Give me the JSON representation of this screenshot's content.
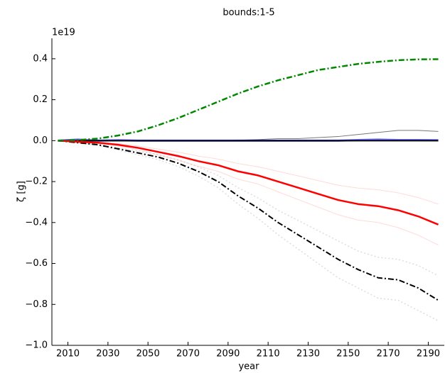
{
  "chart_data": {
    "type": "line",
    "title": "bounds:1-5",
    "x_label": "year",
    "y_label": "ζ [g]",
    "y_offset_label": "1e19",
    "x": [
      2005,
      2015,
      2025,
      2035,
      2045,
      2055,
      2065,
      2075,
      2085,
      2095,
      2105,
      2115,
      2125,
      2135,
      2145,
      2155,
      2165,
      2175,
      2185,
      2195
    ],
    "xlim": [
      2002,
      2198
    ],
    "xticks": [
      2010,
      2030,
      2050,
      2070,
      2090,
      2110,
      2130,
      2150,
      2170,
      2190
    ],
    "ylim": [
      -1.0,
      0.5
    ],
    "yticks": [
      {
        "value": -1.0,
        "label": "−1.0"
      },
      {
        "value": -0.8,
        "label": "−0.8"
      },
      {
        "value": -0.6,
        "label": "−0.6"
      },
      {
        "value": -0.4,
        "label": "−0.4"
      },
      {
        "value": -0.2,
        "label": "−0.2"
      },
      {
        "value": 0.0,
        "label": "0.0"
      },
      {
        "value": 0.2,
        "label": "0.2"
      },
      {
        "value": 0.4,
        "label": "0.4"
      }
    ],
    "series": [
      {
        "color": "#bbbbbb",
        "style": "dotted",
        "width": 1.5,
        "opacity": 0.5,
        "values": [
          0,
          -0.008,
          -0.017,
          -0.034,
          -0.051,
          -0.068,
          -0.094,
          -0.128,
          -0.17,
          -0.23,
          -0.28,
          -0.34,
          -0.39,
          -0.44,
          -0.49,
          -0.54,
          -0.57,
          -0.58,
          -0.61,
          -0.66
        ]
      },
      {
        "color": "#bbbbbb",
        "style": "dotted",
        "width": 1.5,
        "opacity": 0.5,
        "values": [
          0,
          -0.012,
          -0.023,
          -0.046,
          -0.069,
          -0.092,
          -0.126,
          -0.172,
          -0.23,
          -0.31,
          -0.38,
          -0.46,
          -0.53,
          -0.6,
          -0.67,
          -0.72,
          -0.77,
          -0.78,
          -0.83,
          -0.88
        ]
      },
      {
        "color": "#ff0000",
        "style": "solid",
        "width": 1,
        "opacity": 0.15,
        "values": [
          0,
          -0.004,
          -0.008,
          -0.015,
          -0.026,
          -0.041,
          -0.056,
          -0.075,
          -0.09,
          -0.112,
          -0.128,
          -0.15,
          -0.172,
          -0.195,
          -0.218,
          -0.232,
          -0.24,
          -0.255,
          -0.278,
          -0.31
        ]
      },
      {
        "color": "#ff0000",
        "style": "solid",
        "width": 1,
        "opacity": 0.15,
        "values": [
          0,
          -0.006,
          -0.012,
          -0.025,
          -0.044,
          -0.069,
          -0.094,
          -0.125,
          -0.15,
          -0.188,
          -0.212,
          -0.25,
          -0.288,
          -0.325,
          -0.362,
          -0.388,
          -0.4,
          -0.425,
          -0.462,
          -0.51
        ]
      },
      {
        "color": "#777777",
        "style": "solid",
        "width": 1,
        "opacity": 1,
        "values": [
          0,
          0,
          0,
          0,
          0,
          0,
          0,
          0,
          0,
          0.002,
          0.005,
          0.01,
          0.01,
          0.015,
          0.02,
          0.03,
          0.04,
          0.05,
          0.05,
          0.045
        ]
      },
      {
        "color": "#0000ff",
        "style": "solid",
        "width": 3,
        "opacity": 0.6,
        "values": [
          0,
          0.005,
          0,
          0.002,
          0,
          0,
          0,
          0,
          0,
          0,
          0,
          0,
          0,
          0,
          0,
          0.003,
          0.005,
          0.003,
          0.003,
          0.002
        ]
      },
      {
        "color": "#000000",
        "style": "solid",
        "width": 2,
        "opacity": 1,
        "values": [
          0,
          0,
          0,
          0,
          0,
          0,
          0,
          0,
          0,
          0,
          0,
          0,
          0,
          0,
          0,
          0,
          0,
          0,
          0,
          0
        ]
      },
      {
        "color": "#000000",
        "style": "dashdot",
        "width": 2,
        "opacity": 1,
        "values": [
          0,
          -0.01,
          -0.02,
          -0.04,
          -0.06,
          -0.08,
          -0.11,
          -0.15,
          -0.2,
          -0.27,
          -0.33,
          -0.4,
          -0.46,
          -0.52,
          -0.58,
          -0.63,
          -0.67,
          -0.68,
          -0.72,
          -0.78
        ]
      },
      {
        "color": "#ff0000",
        "style": "solid",
        "width": 2.5,
        "opacity": 1,
        "values": [
          0,
          -0.005,
          -0.01,
          -0.02,
          -0.035,
          -0.055,
          -0.075,
          -0.1,
          -0.12,
          -0.15,
          -0.17,
          -0.2,
          -0.23,
          -0.26,
          -0.29,
          -0.31,
          -0.32,
          -0.34,
          -0.37,
          -0.41
        ]
      },
      {
        "color": "#008800",
        "style": "dashdot",
        "width": 2.5,
        "opacity": 1,
        "values": [
          0,
          0.003,
          0.01,
          0.025,
          0.045,
          0.075,
          0.11,
          0.15,
          0.19,
          0.23,
          0.265,
          0.295,
          0.32,
          0.345,
          0.36,
          0.375,
          0.385,
          0.393,
          0.397,
          0.398
        ]
      }
    ]
  }
}
